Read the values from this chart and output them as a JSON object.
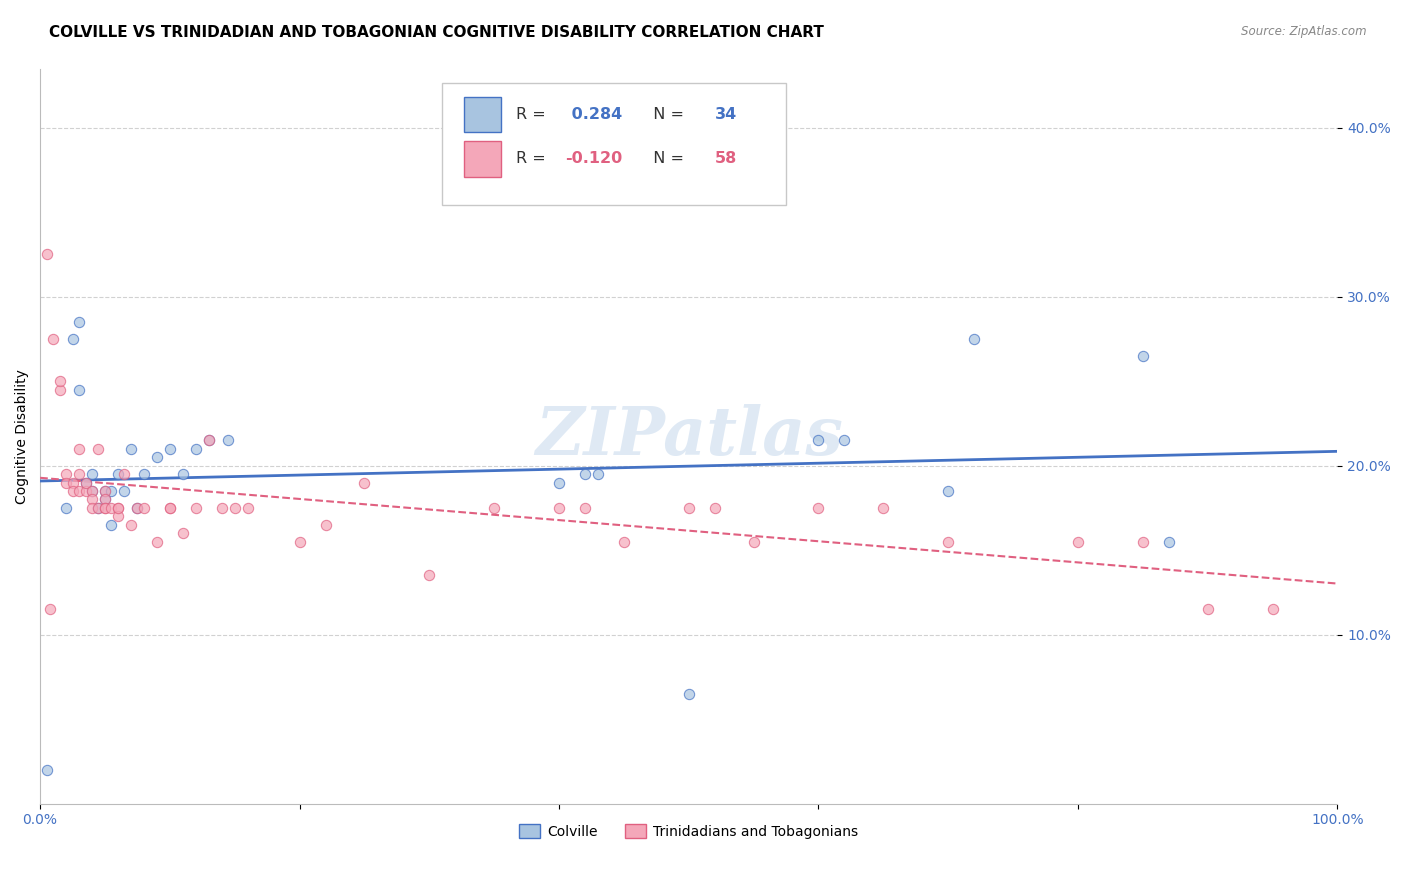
{
  "title": "COLVILLE VS TRINIDADIAN AND TOBAGONIAN COGNITIVE DISABILITY CORRELATION CHART",
  "source": "Source: ZipAtlas.com",
  "ylabel": "Cognitive Disability",
  "y_ticks": [
    0.1,
    0.2,
    0.3,
    0.4
  ],
  "y_tick_labels": [
    "10.0%",
    "20.0%",
    "30.0%",
    "40.0%"
  ],
  "xlim": [
    0.0,
    1.0
  ],
  "ylim": [
    0.0,
    0.435
  ],
  "colville_R": 0.284,
  "colville_N": 34,
  "trinidadian_R": -0.12,
  "trinidadian_N": 58,
  "colville_color": "#a8c4e0",
  "colville_line_color": "#4472c4",
  "trinidadian_color": "#f4a7b9",
  "trinidadian_line_color": "#e06080",
  "background_color": "#ffffff",
  "grid_color": "#cccccc",
  "colville_x": [
    0.005,
    0.02,
    0.025,
    0.03,
    0.035,
    0.04,
    0.04,
    0.045,
    0.05,
    0.05,
    0.055,
    0.055,
    0.06,
    0.065,
    0.07,
    0.075,
    0.08,
    0.09,
    0.1,
    0.11,
    0.12,
    0.13,
    0.145,
    0.4,
    0.42,
    0.43,
    0.6,
    0.62,
    0.7,
    0.72,
    0.85,
    0.87,
    0.5,
    0.03
  ],
  "colville_y": [
    0.02,
    0.175,
    0.275,
    0.285,
    0.19,
    0.185,
    0.195,
    0.175,
    0.18,
    0.185,
    0.165,
    0.185,
    0.195,
    0.185,
    0.21,
    0.175,
    0.195,
    0.205,
    0.21,
    0.195,
    0.21,
    0.215,
    0.215,
    0.19,
    0.195,
    0.195,
    0.215,
    0.215,
    0.185,
    0.275,
    0.265,
    0.155,
    0.065,
    0.245
  ],
  "trinidadian_x": [
    0.005,
    0.01,
    0.015,
    0.015,
    0.02,
    0.02,
    0.025,
    0.025,
    0.03,
    0.03,
    0.03,
    0.035,
    0.035,
    0.04,
    0.04,
    0.04,
    0.045,
    0.045,
    0.05,
    0.05,
    0.05,
    0.05,
    0.055,
    0.06,
    0.06,
    0.06,
    0.065,
    0.07,
    0.075,
    0.08,
    0.09,
    0.1,
    0.1,
    0.11,
    0.12,
    0.13,
    0.14,
    0.15,
    0.16,
    0.2,
    0.22,
    0.25,
    0.3,
    0.35,
    0.4,
    0.42,
    0.45,
    0.5,
    0.52,
    0.55,
    0.6,
    0.65,
    0.7,
    0.8,
    0.85,
    0.9,
    0.95,
    0.008
  ],
  "trinidadian_y": [
    0.325,
    0.275,
    0.245,
    0.25,
    0.195,
    0.19,
    0.19,
    0.185,
    0.21,
    0.195,
    0.185,
    0.185,
    0.19,
    0.185,
    0.18,
    0.175,
    0.21,
    0.175,
    0.185,
    0.18,
    0.175,
    0.175,
    0.175,
    0.175,
    0.17,
    0.175,
    0.195,
    0.165,
    0.175,
    0.175,
    0.155,
    0.175,
    0.175,
    0.16,
    0.175,
    0.215,
    0.175,
    0.175,
    0.175,
    0.155,
    0.165,
    0.19,
    0.135,
    0.175,
    0.175,
    0.175,
    0.155,
    0.175,
    0.175,
    0.155,
    0.175,
    0.175,
    0.155,
    0.155,
    0.155,
    0.115,
    0.115,
    0.115
  ],
  "legend_colville_label": "Colville",
  "legend_trinidadian_label": "Trinidadians and Tobagonians",
  "title_fontsize": 11,
  "axis_fontsize": 9,
  "marker_size": 55,
  "marker_alpha": 0.7
}
